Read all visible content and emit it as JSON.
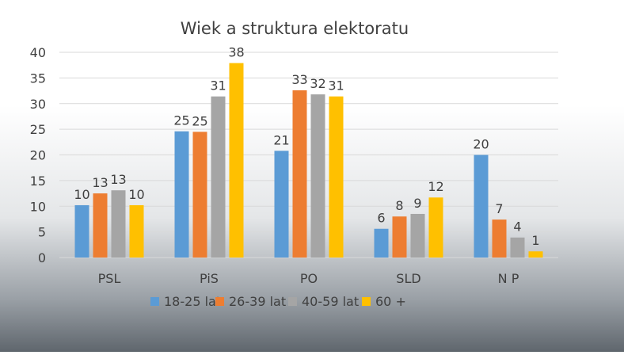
{
  "chart_data": {
    "type": "bar",
    "title": "Wiek a struktura elektoratu",
    "xlabel": "",
    "ylabel": "",
    "categories": [
      "PSL",
      "PiS",
      "PO",
      "SLD",
      "N P"
    ],
    "ylim": [
      0,
      40
    ],
    "yticks": [
      0,
      5,
      10,
      15,
      20,
      25,
      30,
      35,
      40
    ],
    "grid": true,
    "legend_position": "bottom",
    "series": [
      {
        "name": "18-25 lat",
        "color": "#5B9BD5",
        "values": [
          10,
          25,
          21,
          6,
          20
        ],
        "labels": [
          "10",
          "25",
          "21",
          "6",
          "20"
        ],
        "heights": [
          10.2,
          24.6,
          20.8,
          5.6,
          20
        ]
      },
      {
        "name": "26-39 lat",
        "color": "#ED7D31",
        "values": [
          13,
          25,
          33,
          8,
          7
        ],
        "labels": [
          "13",
          "25",
          "33",
          "8",
          "7"
        ],
        "heights": [
          12.5,
          24.5,
          32.6,
          8,
          7.4
        ]
      },
      {
        "name": "40-59 lat",
        "color": "#A5A5A5",
        "values": [
          13,
          31,
          32,
          9,
          4
        ],
        "labels": [
          "13",
          "31",
          "32",
          "9",
          "4"
        ],
        "heights": [
          13.1,
          31.4,
          31.8,
          8.5,
          3.9
        ]
      },
      {
        "name": "60 +",
        "color": "#FFC000",
        "values": [
          10,
          38,
          31,
          12,
          1
        ],
        "labels": [
          "10",
          "38",
          "31",
          "12",
          "1"
        ],
        "heights": [
          10.2,
          37.9,
          31.4,
          11.7,
          1.2
        ]
      }
    ]
  }
}
